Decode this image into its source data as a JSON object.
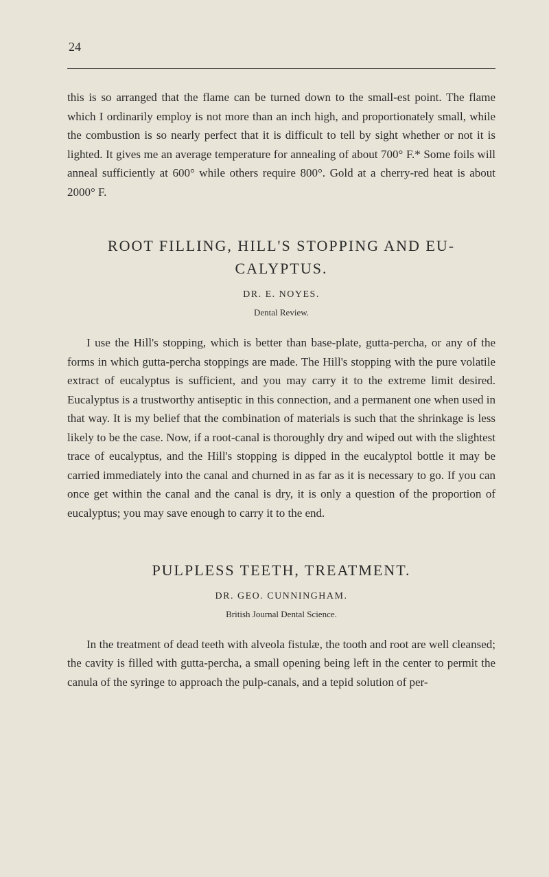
{
  "page_number": "24",
  "paragraph1": "this is so arranged that the flame can be turned down to the small-est point. The flame which I ordinarily employ is not more than an inch high, and proportionately small, while the combustion is so nearly perfect that it is difficult to tell by sight whether or not it is lighted. It gives me an average temperature for annealing of about 700° F.* Some foils will anneal sufficiently at 600° while others require 800°. Gold at a cherry-red heat is about 2000° F.",
  "section1": {
    "title": "ROOT FILLING, HILL'S STOPPING AND EU-CALYPTUS.",
    "author": "DR. E. NOYES.",
    "source": "Dental Review.",
    "body": "I use the Hill's stopping, which is better than base-plate, gutta-percha, or any of the forms in which gutta-percha stoppings are made. The Hill's stopping with the pure volatile extract of eucalyptus is sufficient, and you may carry it to the extreme limit desired. Eucalyptus is a trustworthy antiseptic in this connection, and a permanent one when used in that way. It is my belief that the combination of materials is such that the shrinkage is less likely to be the case. Now, if a root-canal is thoroughly dry and wiped out with the slightest trace of eucalyptus, and the Hill's stopping is dipped in the eucalyptol bottle it may be carried immediately into the canal and churned in as far as it is necessary to go. If you can once get within the canal and the canal is dry, it is only a question of the proportion of eucalyptus; you may save enough to carry it to the end."
  },
  "section2": {
    "title": "PULPLESS TEETH, TREATMENT.",
    "author": "DR. GEO. CUNNINGHAM.",
    "source": "British Journal Dental Science.",
    "body": "In the treatment of dead teeth with alveola fistulæ, the tooth and root are well cleansed; the cavity is filled with gutta-percha, a small opening being left in the center to permit the canula of the syringe to approach the pulp-canals, and a tepid solution of per-"
  }
}
